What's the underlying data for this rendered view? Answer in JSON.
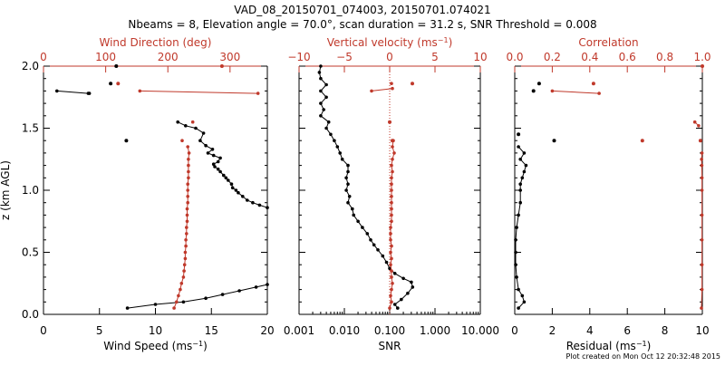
{
  "header": {
    "title": "VAD_08_20150701_074003, 20150701.074021",
    "subtitle": "Nbeams = 8, Elevation angle = 70.0°, scan duration = 31.2 s, SNR Threshold = 0.008"
  },
  "footer": {
    "created": "Plot created on Mon Oct 12 20:32:48 2015"
  },
  "colors": {
    "black": "#000000",
    "red": "#c0392b"
  },
  "chart_data": [
    {
      "type": "line",
      "ylabel": "z (km AGL)",
      "ylim": [
        0.0,
        2.0
      ],
      "yticks": [
        "0.0",
        "0.5",
        "1.0",
        "1.5",
        "2.0"
      ],
      "bottom_axis": {
        "label": "Wind Speed (ms",
        "label_sup": "−1",
        "label_close": ")",
        "range": [
          0,
          20
        ],
        "ticks": [
          "0",
          "5",
          "10",
          "15",
          "20"
        ]
      },
      "top_axis": {
        "label": "Wind Direction (deg)",
        "range": [
          0,
          360
        ],
        "ticks": [
          "0",
          "100",
          "200",
          "300"
        ]
      },
      "series": [
        {
          "axis": "bottom",
          "color": "#000000",
          "points": [
            [
              7.5,
              0.05
            ],
            [
              10,
              0.08
            ],
            [
              12.5,
              0.1
            ],
            [
              14.5,
              0.13
            ],
            [
              16,
              0.16
            ],
            [
              17.5,
              0.19
            ],
            [
              19,
              0.22
            ],
            [
              20,
              0.24
            ],
            [
              20,
              0.86
            ],
            [
              19.3,
              0.88
            ],
            [
              18.7,
              0.9
            ],
            [
              18.2,
              0.92
            ],
            [
              17.8,
              0.95
            ],
            [
              17.4,
              0.98
            ],
            [
              17.2,
              1.0
            ],
            [
              16.9,
              1.02
            ],
            [
              16.8,
              1.05
            ],
            [
              16.5,
              1.08
            ],
            [
              16.3,
              1.1
            ],
            [
              16.1,
              1.12
            ],
            [
              15.8,
              1.15
            ],
            [
              15.6,
              1.17
            ],
            [
              15.3,
              1.19
            ],
            [
              15.2,
              1.21
            ],
            [
              15.6,
              1.23
            ],
            [
              15.8,
              1.26
            ],
            [
              15.2,
              1.28
            ],
            [
              14.7,
              1.3
            ],
            [
              15.1,
              1.33
            ],
            [
              14.5,
              1.36
            ],
            [
              14,
              1.4
            ],
            [
              14.3,
              1.46
            ],
            [
              13.6,
              1.5
            ],
            [
              12.7,
              1.52
            ],
            [
              12,
              1.55
            ],
            [
              1.2,
              1.8
            ],
            [
              4,
              1.78
            ],
            [
              4.1,
              1.78
            ]
          ],
          "isolated_points": [
            [
              6.5,
              2.0
            ],
            [
              6,
              1.86
            ],
            [
              7.4,
              1.4
            ]
          ],
          "segments": [
            [
              0,
              7
            ],
            [
              8,
              34
            ],
            [
              35,
              37
            ]
          ]
        },
        {
          "axis": "top",
          "color": "#c0392b",
          "points": [
            [
              210,
              0.05
            ],
            [
              214,
              0.1
            ],
            [
              217,
              0.15
            ],
            [
              220,
              0.2
            ],
            [
              222,
              0.25
            ],
            [
              225,
              0.3
            ],
            [
              226,
              0.35
            ],
            [
              227,
              0.4
            ],
            [
              228,
              0.45
            ],
            [
              228,
              0.5
            ],
            [
              229,
              0.55
            ],
            [
              229,
              0.6
            ],
            [
              230,
              0.65
            ],
            [
              230,
              0.7
            ],
            [
              231,
              0.75
            ],
            [
              231,
              0.8
            ],
            [
              231,
              0.85
            ],
            [
              232,
              0.9
            ],
            [
              232,
              0.95
            ],
            [
              232,
              1.0
            ],
            [
              232,
              1.05
            ],
            [
              233,
              1.1
            ],
            [
              233,
              1.15
            ],
            [
              233,
              1.2
            ],
            [
              233,
              1.25
            ],
            [
              234,
              1.3
            ],
            [
              232,
              1.35
            ],
            [
              223,
              1.4
            ],
            [
              240,
              1.55
            ],
            [
              155,
              1.8
            ],
            [
              345,
              1.78
            ]
          ],
          "isolated_points": [
            [
              120,
              1.86
            ],
            [
              287,
              2.0
            ]
          ],
          "segments": [
            [
              0,
              26
            ],
            [
              29,
              30
            ]
          ]
        }
      ]
    },
    {
      "type": "line",
      "ylim": [
        0.0,
        2.0
      ],
      "bottom_axis": {
        "label": "SNR",
        "scale": "log",
        "range": [
          0.001,
          10.0
        ],
        "ticks": [
          "0.001",
          "0.010",
          "0.100",
          "1.000",
          "10.000"
        ]
      },
      "top_axis": {
        "label": "Vertical velocity (ms",
        "label_sup": "−1",
        "label_close": ")",
        "range": [
          -10,
          10
        ],
        "ticks": [
          "−10",
          "−5",
          "0",
          "5",
          "10"
        ]
      },
      "reference_line": {
        "axis": "top",
        "value": 0,
        "style": "dotted",
        "color": "#c0392b"
      },
      "series": [
        {
          "axis": "bottom",
          "color": "#000000",
          "points": [
            [
              0.15,
              0.05
            ],
            [
              0.13,
              0.08
            ],
            [
              0.18,
              0.12
            ],
            [
              0.25,
              0.17
            ],
            [
              0.32,
              0.22
            ],
            [
              0.3,
              0.26
            ],
            [
              0.2,
              0.29
            ],
            [
              0.13,
              0.33
            ],
            [
              0.1,
              0.37
            ],
            [
              0.085,
              0.42
            ],
            [
              0.07,
              0.47
            ],
            [
              0.055,
              0.52
            ],
            [
              0.045,
              0.56
            ],
            [
              0.038,
              0.6
            ],
            [
              0.032,
              0.65
            ],
            [
              0.025,
              0.7
            ],
            [
              0.02,
              0.75
            ],
            [
              0.016,
              0.8
            ],
            [
              0.015,
              0.85
            ],
            [
              0.012,
              0.9
            ],
            [
              0.013,
              0.95
            ],
            [
              0.011,
              1.0
            ],
            [
              0.012,
              1.05
            ],
            [
              0.011,
              1.1
            ],
            [
              0.012,
              1.15
            ],
            [
              0.012,
              1.2
            ],
            [
              0.009,
              1.25
            ],
            [
              0.008,
              1.3
            ],
            [
              0.007,
              1.35
            ],
            [
              0.006,
              1.4
            ],
            [
              0.005,
              1.45
            ],
            [
              0.004,
              1.5
            ],
            [
              0.0045,
              1.55
            ],
            [
              0.003,
              1.6
            ],
            [
              0.0035,
              1.65
            ],
            [
              0.003,
              1.7
            ],
            [
              0.004,
              1.75
            ],
            [
              0.003,
              1.8
            ],
            [
              0.004,
              1.85
            ],
            [
              0.003,
              1.9
            ],
            [
              0.0028,
              1.95
            ],
            [
              0.003,
              2.0
            ]
          ]
        },
        {
          "axis": "top",
          "color": "#c0392b",
          "points": [
            [
              0.0,
              0.05
            ],
            [
              0.2,
              0.1
            ],
            [
              0.1,
              0.15
            ],
            [
              0.2,
              0.2
            ],
            [
              0.3,
              0.25
            ],
            [
              0.2,
              0.3
            ],
            [
              0.2,
              0.35
            ],
            [
              0.1,
              0.4
            ],
            [
              0.2,
              0.45
            ],
            [
              0.1,
              0.5
            ],
            [
              0.2,
              0.55
            ],
            [
              0.1,
              0.6
            ],
            [
              0.1,
              0.65
            ],
            [
              0.1,
              0.7
            ],
            [
              0.2,
              0.75
            ],
            [
              0.2,
              0.8
            ],
            [
              0.2,
              0.85
            ],
            [
              0.2,
              0.9
            ],
            [
              0.2,
              0.95
            ],
            [
              0.2,
              1.0
            ],
            [
              0.2,
              1.05
            ],
            [
              0.2,
              1.1
            ],
            [
              0.3,
              1.15
            ],
            [
              0.2,
              1.2
            ],
            [
              0.3,
              1.25
            ],
            [
              0.5,
              1.3
            ],
            [
              0.3,
              1.35
            ],
            [
              0.4,
              1.4
            ],
            [
              -2.0,
              1.8
            ],
            [
              0.3,
              1.82
            ],
            [
              0.2,
              1.86
            ]
          ],
          "isolated_points": [
            [
              2.5,
              1.86
            ],
            [
              0.0,
              1.55
            ],
            [
              0.3,
              1.4
            ]
          ],
          "segments": [
            [
              0,
              27
            ],
            [
              28,
              29
            ]
          ]
        }
      ]
    },
    {
      "type": "line",
      "ylim": [
        0.0,
        2.0
      ],
      "bottom_axis": {
        "label": "Residual (ms",
        "label_sup": "−1",
        "label_close": ")",
        "range": [
          0,
          10
        ],
        "ticks": [
          "0",
          "2",
          "4",
          "6",
          "8",
          "10"
        ]
      },
      "top_axis": {
        "label": "Correlation",
        "range": [
          0.0,
          1.0
        ],
        "ticks": [
          "0.0",
          "0.2",
          "0.4",
          "0.6",
          "0.8",
          "1.0"
        ]
      },
      "series": [
        {
          "axis": "bottom",
          "color": "#000000",
          "points": [
            [
              0.2,
              0.05
            ],
            [
              0.5,
              0.1
            ],
            [
              0.4,
              0.15
            ],
            [
              0.2,
              0.2
            ],
            [
              0.1,
              0.3
            ],
            [
              0.05,
              0.4
            ],
            [
              0.05,
              0.5
            ],
            [
              0.05,
              0.6
            ],
            [
              0.1,
              0.7
            ],
            [
              0.2,
              0.8
            ],
            [
              0.3,
              0.9
            ],
            [
              0.3,
              1.0
            ],
            [
              0.3,
              1.05
            ],
            [
              0.4,
              1.1
            ],
            [
              0.5,
              1.15
            ],
            [
              0.6,
              1.2
            ],
            [
              0.3,
              1.25
            ],
            [
              0.5,
              1.3
            ],
            [
              0.2,
              1.35
            ]
          ],
          "isolated_points": [
            [
              1.3,
              1.86
            ],
            [
              1.0,
              1.8
            ],
            [
              2.1,
              1.4
            ],
            [
              0.2,
              1.45
            ]
          ],
          "segments": [
            [
              0,
              18
            ]
          ]
        },
        {
          "axis": "top",
          "color": "#c0392b",
          "points": [
            [
              0.995,
              0.05
            ],
            [
              0.998,
              0.2
            ],
            [
              0.998,
              0.4
            ],
            [
              0.998,
              0.6
            ],
            [
              0.998,
              0.8
            ],
            [
              0.998,
              1.0
            ],
            [
              0.998,
              1.1
            ],
            [
              0.997,
              1.2
            ],
            [
              0.996,
              1.25
            ],
            [
              0.998,
              1.3
            ],
            [
              0.96,
              1.55
            ],
            [
              0.98,
              1.52
            ],
            [
              0.2,
              1.8
            ],
            [
              0.45,
              1.78
            ]
          ],
          "isolated_points": [
            [
              1.0,
              2.0
            ],
            [
              0.42,
              1.86
            ],
            [
              0.68,
              1.4
            ],
            [
              0.99,
              1.4
            ]
          ],
          "segments": [
            [
              0,
              9
            ],
            [
              10,
              11
            ],
            [
              12,
              13
            ]
          ]
        }
      ]
    }
  ]
}
